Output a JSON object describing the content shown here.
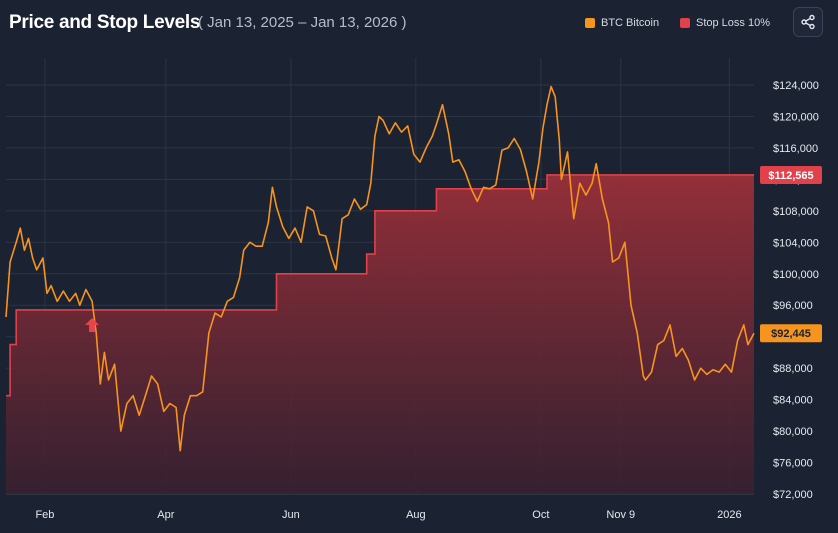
{
  "header": {
    "title": "Price and Stop Levels",
    "subtitle": "( Jan 13, 2025 – Jan 13, 2026 )"
  },
  "legend": {
    "btc_label": "BTC Bitcoin",
    "stop_label": "Stop Loss 10%"
  },
  "colors": {
    "background": "#1b2231",
    "grid": "#2c3546",
    "btc": "#f7941d",
    "stop": "#e0414a",
    "fill": "#7a2a33"
  },
  "icons": {
    "share": "share-icon",
    "arrow": "up-arrow-icon"
  },
  "chart_data": {
    "type": "line",
    "x_domain": [
      "2025-01-13",
      "2026-01-13"
    ],
    "ylim": [
      72000,
      127000
    ],
    "y_ticks": [
      72000,
      76000,
      80000,
      84000,
      88000,
      92000,
      96000,
      100000,
      104000,
      108000,
      112000,
      116000,
      120000,
      124000
    ],
    "y_tick_labels": [
      "$72,000",
      "$76,000",
      "$80,000",
      "$84,000",
      "$88,000",
      "$92,000",
      "$96,000",
      "$100,000",
      "$104,000",
      "$108,000",
      "$112,000",
      "$116,000",
      "$120,000",
      "$124,000"
    ],
    "x_ticks": [
      "2025-02-01",
      "2025-04-01",
      "2025-06-01",
      "2025-08-01",
      "2025-10-01",
      "2025-11-09",
      "2026-01-01"
    ],
    "x_tick_labels": [
      "Feb",
      "Apr",
      "Jun",
      "Aug",
      "Oct",
      "Nov 9",
      "2026"
    ],
    "grid": true,
    "legend_position": "top-right",
    "last_price_label": "$92,445",
    "last_stop_label": "$112,565",
    "buy_marker_date": "2025-02-24",
    "series": [
      {
        "name": "BTC Bitcoin",
        "x": [
          "2025-01-13",
          "2025-01-15",
          "2025-01-18",
          "2025-01-20",
          "2025-01-22",
          "2025-01-24",
          "2025-01-26",
          "2025-01-28",
          "2025-01-31",
          "2025-02-02",
          "2025-02-04",
          "2025-02-07",
          "2025-02-10",
          "2025-02-13",
          "2025-02-16",
          "2025-02-18",
          "2025-02-21",
          "2025-02-24",
          "2025-02-26",
          "2025-02-28",
          "2025-03-02",
          "2025-03-04",
          "2025-03-07",
          "2025-03-10",
          "2025-03-13",
          "2025-03-16",
          "2025-03-19",
          "2025-03-22",
          "2025-03-25",
          "2025-03-28",
          "2025-03-31",
          "2025-04-03",
          "2025-04-06",
          "2025-04-08",
          "2025-04-10",
          "2025-04-13",
          "2025-04-16",
          "2025-04-19",
          "2025-04-22",
          "2025-04-25",
          "2025-04-28",
          "2025-05-01",
          "2025-05-04",
          "2025-05-07",
          "2025-05-09",
          "2025-05-12",
          "2025-05-15",
          "2025-05-18",
          "2025-05-21",
          "2025-05-23",
          "2025-05-25",
          "2025-05-28",
          "2025-05-31",
          "2025-06-03",
          "2025-06-06",
          "2025-06-09",
          "2025-06-12",
          "2025-06-15",
          "2025-06-18",
          "2025-06-21",
          "2025-06-23",
          "2025-06-26",
          "2025-06-29",
          "2025-07-02",
          "2025-07-05",
          "2025-07-08",
          "2025-07-10",
          "2025-07-12",
          "2025-07-14",
          "2025-07-16",
          "2025-07-19",
          "2025-07-22",
          "2025-07-25",
          "2025-07-28",
          "2025-07-31",
          "2025-08-03",
          "2025-08-06",
          "2025-08-09",
          "2025-08-11",
          "2025-08-14",
          "2025-08-17",
          "2025-08-19",
          "2025-08-22",
          "2025-08-25",
          "2025-08-28",
          "2025-08-31",
          "2025-09-03",
          "2025-09-06",
          "2025-09-09",
          "2025-09-12",
          "2025-09-15",
          "2025-09-18",
          "2025-09-21",
          "2025-09-24",
          "2025-09-27",
          "2025-09-30",
          "2025-10-02",
          "2025-10-04",
          "2025-10-06",
          "2025-10-08",
          "2025-10-10",
          "2025-10-11",
          "2025-10-14",
          "2025-10-17",
          "2025-10-20",
          "2025-10-23",
          "2025-10-26",
          "2025-10-28",
          "2025-10-31",
          "2025-11-03",
          "2025-11-05",
          "2025-11-08",
          "2025-11-11",
          "2025-11-14",
          "2025-11-17",
          "2025-11-20",
          "2025-11-21",
          "2025-11-24",
          "2025-11-27",
          "2025-11-30",
          "2025-12-03",
          "2025-12-06",
          "2025-12-09",
          "2025-12-12",
          "2025-12-15",
          "2025-12-18",
          "2025-12-21",
          "2025-12-24",
          "2025-12-27",
          "2025-12-30",
          "2026-01-02",
          "2026-01-05",
          "2026-01-08",
          "2026-01-10",
          "2026-01-13"
        ],
        "values": [
          94500,
          101500,
          104000,
          105800,
          103000,
          104500,
          102000,
          100500,
          102000,
          97500,
          98500,
          96500,
          97800,
          96500,
          97500,
          96000,
          98000,
          96500,
          92500,
          86000,
          90000,
          86500,
          88500,
          80000,
          83500,
          84500,
          82000,
          84500,
          87000,
          86000,
          82500,
          83500,
          83000,
          77500,
          82000,
          84500,
          84500,
          85000,
          92500,
          95000,
          94500,
          96500,
          97000,
          99500,
          103000,
          104000,
          103500,
          103500,
          106500,
          111000,
          108500,
          106000,
          104500,
          105800,
          104000,
          108500,
          108000,
          105000,
          104800,
          102000,
          100500,
          107000,
          107500,
          109500,
          108200,
          108800,
          111500,
          117500,
          120000,
          119500,
          117800,
          119200,
          118000,
          118800,
          115200,
          114200,
          116000,
          117500,
          119000,
          121500,
          117800,
          114200,
          114500,
          113000,
          110800,
          109200,
          111000,
          110800,
          111300,
          115700,
          116000,
          117200,
          115800,
          113000,
          109500,
          114100,
          118500,
          121500,
          123800,
          122500,
          117000,
          112000,
          115500,
          107000,
          111500,
          110000,
          111500,
          114000,
          109500,
          106500,
          101500,
          102000,
          104000,
          96000,
          92500,
          87000,
          86500,
          87500,
          91000,
          91500,
          93500,
          89500,
          90500,
          89000,
          86500,
          88000,
          87200,
          87800,
          87500,
          88500,
          87500,
          91500,
          93500,
          91000,
          92445
        ],
        "line_color": "#f7941d"
      },
      {
        "name": "Stop Loss 10%",
        "x": [
          "2025-01-13",
          "2025-01-15",
          "2025-01-18",
          "2025-02-24",
          "2025-05-25",
          "2025-07-08",
          "2025-07-12",
          "2025-08-11",
          "2025-10-04",
          "2026-01-13"
        ],
        "values": [
          84500,
          91000,
          95400,
          95400,
          100000,
          102500,
          108000,
          110800,
          112565,
          112565
        ],
        "line_color": "#e0414a",
        "line_style": "step"
      }
    ]
  }
}
